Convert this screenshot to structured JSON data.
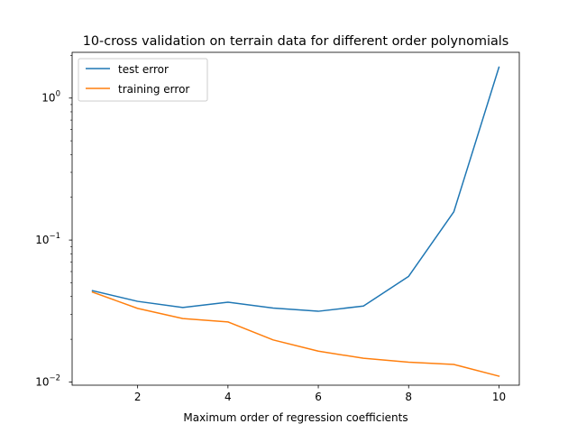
{
  "chart_data": {
    "type": "line",
    "title": "10-cross validation on terrain data for different order polynomials",
    "xlabel": "Maximum order of regression coefficients",
    "ylabel": "",
    "yscale": "log",
    "xlim": [
      0.55,
      10.45
    ],
    "ylim": [
      0.0095,
      2.1
    ],
    "x": [
      1,
      2,
      3,
      4,
      5,
      6,
      7,
      8,
      9,
      10
    ],
    "xticks": [
      2,
      4,
      6,
      8,
      10
    ],
    "yticks": [
      {
        "value": 0.01,
        "base": "10",
        "exp": "−2"
      },
      {
        "value": 0.1,
        "base": "10",
        "exp": "−1"
      },
      {
        "value": 1,
        "base": "10",
        "exp": "0"
      }
    ],
    "legend_position": "top-left",
    "grid": false,
    "series": [
      {
        "name": "test error",
        "color": "#1f77b4",
        "values": [
          0.044,
          0.037,
          0.0335,
          0.0365,
          0.0332,
          0.0315,
          0.0343,
          0.0555,
          0.158,
          1.65
        ]
      },
      {
        "name": "training error",
        "color": "#ff7f0e",
        "values": [
          0.043,
          0.033,
          0.028,
          0.0265,
          0.0198,
          0.0165,
          0.0147,
          0.0138,
          0.0133,
          0.011
        ]
      }
    ]
  }
}
